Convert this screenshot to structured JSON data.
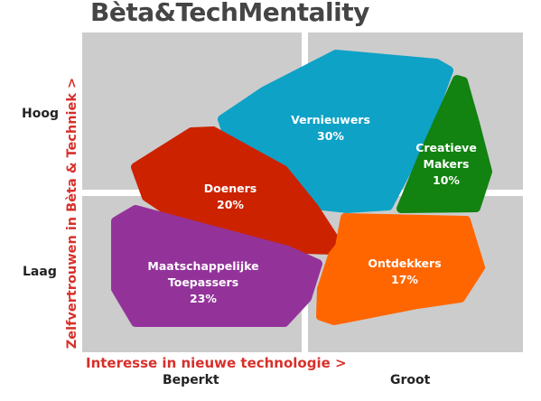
{
  "title": "Bèta&TechMentality",
  "y_axis": {
    "label": "Zelfvertrouwen in Bèta & Techniek >",
    "ticks": [
      "Hoog",
      "Laag"
    ]
  },
  "x_axis": {
    "label": "Interesse in nieuwe technologie >",
    "ticks": [
      "Beperkt",
      "Groot"
    ]
  },
  "colors": {
    "quadrant": "#cccccc",
    "axis_label": "#d7302b"
  },
  "segments": [
    {
      "id": "vernieuwers",
      "name_lines": [
        "Vernieuwers"
      ],
      "percent": "30%",
      "color": "#0ea2c6"
    },
    {
      "id": "creatieve-makers",
      "name_lines": [
        "Creatieve",
        "Makers"
      ],
      "percent": "10%",
      "color": "#128210"
    },
    {
      "id": "doeners",
      "name_lines": [
        "Doeners"
      ],
      "percent": "20%",
      "color": "#cc2200"
    },
    {
      "id": "maatschappelijke-toepassers",
      "name_lines": [
        "Maatschappelijke",
        "Toepassers"
      ],
      "percent": "23%",
      "color": "#93339a"
    },
    {
      "id": "ontdekkers",
      "name_lines": [
        "Ontdekkers"
      ],
      "percent": "17%",
      "color": "#ff6600"
    }
  ]
}
